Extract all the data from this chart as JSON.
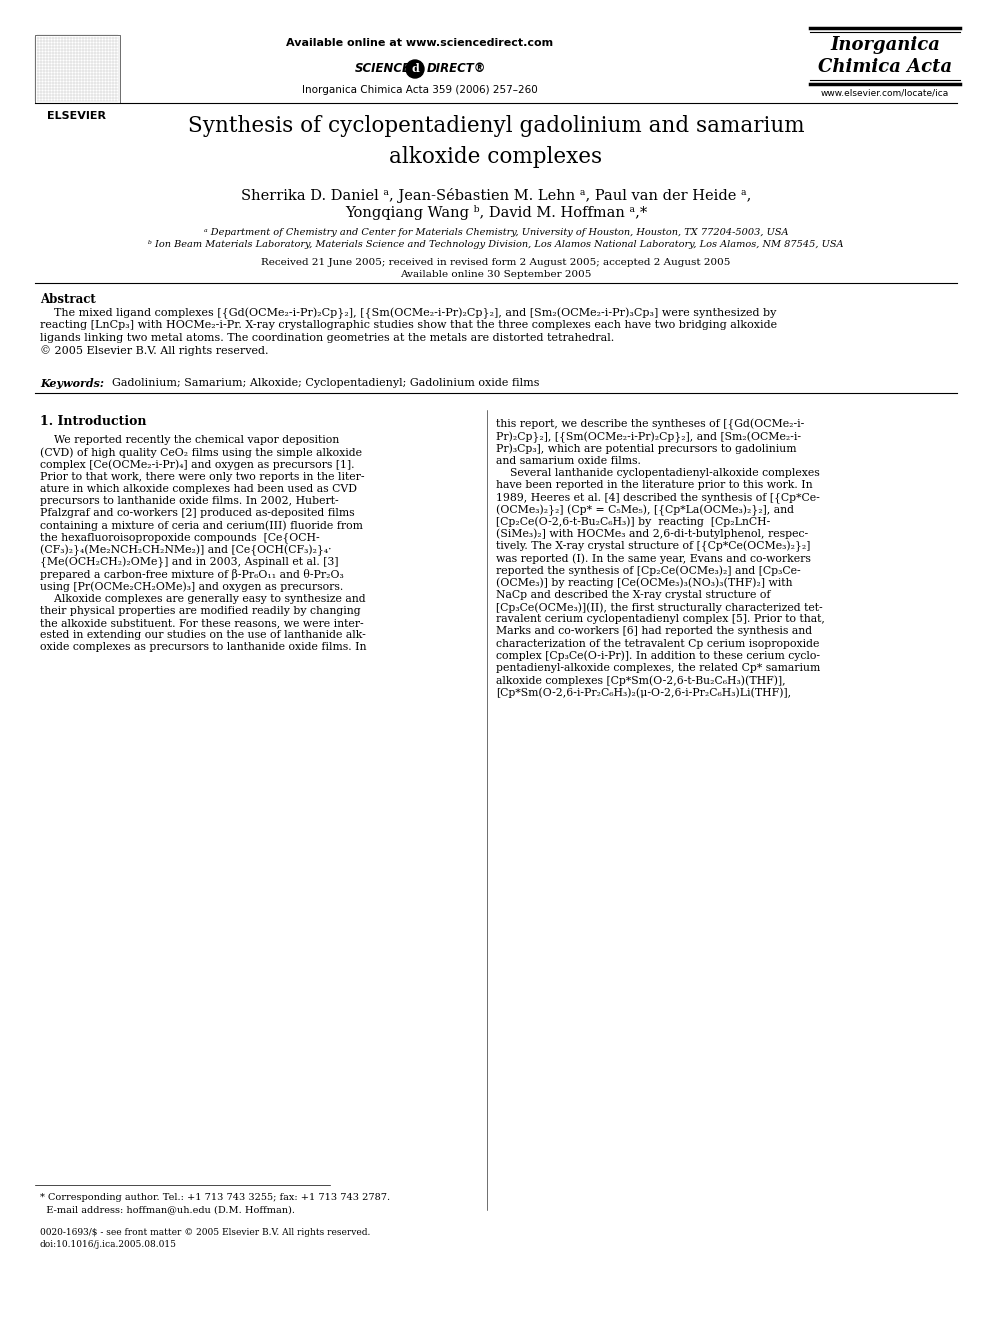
{
  "bg_color": "#ffffff",
  "title": "Synthesis of cyclopentadienyl gadolinium and samarium\nalkoxide complexes",
  "authors_line1": "Sherrika D. Daniel ᵃ, Jean-Sébastien M. Lehn ᵃ, Paul van der Heide ᵃ,",
  "authors_line2": "Yongqiang Wang ᵇ, David M. Hoffman ᵃ,*",
  "affil_a": "ᵃ Department of Chemistry and Center for Materials Chemistry, University of Houston, Houston, TX 77204-5003, USA",
  "affil_b": "ᵇ Ion Beam Materials Laboratory, Materials Science and Technology Division, Los Alamos National Laboratory, Los Alamos, NM 87545, USA",
  "received": "Received 21 June 2005; received in revised form 2 August 2005; accepted 2 August 2005",
  "available_online": "Available online 30 September 2005",
  "header_online": "Available online at www.sciencedirect.com",
  "journal_line": "Inorganica Chimica Acta 359 (2006) 257–260",
  "journal_name1": "Inorganica",
  "journal_name2": "Chimica Acta",
  "website": "www.elsevier.com/locate/ica",
  "abstract_title": "Abstract",
  "abstract_body": [
    "    The mixed ligand complexes [{Gd(OCMe₂-i-Pr)₂Cp}₂], [{Sm(OCMe₂-i-Pr)₂Cp}₂], and [Sm₂(OCMe₂-i-Pr)₃Cp₃] were synthesized by",
    "reacting [LnCp₃] with HOCMe₂-i-Pr. X-ray crystallographic studies show that the three complexes each have two bridging alkoxide",
    "ligands linking two metal atoms. The coordination geometries at the metals are distorted tetrahedral.",
    "© 2005 Elsevier B.V. All rights reserved."
  ],
  "keywords_bold": "Keywords:",
  "keywords_rest": "  Gadolinium; Samarium; Alkoxide; Cyclopentadienyl; Gadolinium oxide films",
  "sec1_title": "1. Introduction",
  "col1_lines": [
    "    We reported recently the chemical vapor deposition",
    "(CVD) of high quality CeO₂ films using the simple alkoxide",
    "complex [Ce(OCMe₂-i-Pr)₄] and oxygen as precursors [1].",
    "Prior to that work, there were only two reports in the liter-",
    "ature in which alkoxide complexes had been used as CVD",
    "precursors to lanthanide oxide films. In 2002, Hubert-",
    "Pfalzgraf and co-workers [2] produced as-deposited films",
    "containing a mixture of ceria and cerium(III) fluoride from",
    "the hexafluoroisopropoxide compounds  [Ce{OCH-",
    "(CF₃)₂}₄(Me₂NCH₂CH₂NMe₂)] and [Ce{OCH(CF₃)₂}₄·",
    "{Me(OCH₂CH₂)₂OMe}] and in 2003, Aspinall et al. [3]",
    "prepared a carbon-free mixture of β-Pr₆O₁₁ and θ-Pr₂O₃",
    "using [Pr(OCMe₂CH₂OMe)₃] and oxygen as precursors.",
    "    Alkoxide complexes are generally easy to synthesize and",
    "their physical properties are modified readily by changing",
    "the alkoxide substituent. For these reasons, we were inter-",
    "ested in extending our studies on the use of lanthanide alk-",
    "oxide complexes as precursors to lanthanide oxide films. In"
  ],
  "col2_lines": [
    "this report, we describe the syntheses of [{Gd(OCMe₂-i-",
    "Pr)₂Cp}₂], [{Sm(OCMe₂-i-Pr)₂Cp}₂], and [Sm₂(OCMe₂-i-",
    "Pr)₃Cp₃], which are potential precursors to gadolinium",
    "and samarium oxide films.",
    "    Several lanthanide cyclopentadienyl-alkoxide complexes",
    "have been reported in the literature prior to this work. In",
    "1989, Heeres et al. [4] described the synthesis of [{Cp*Ce-",
    "(OCMe₃)₂}₂] (Cp* = C₅Me₅), [{Cp*La(OCMe₃)₂}₂], and",
    "[Cp₂Ce(O-2,6-t-Bu₂C₆H₃)] by  reacting  [Cp₂LnCH-",
    "(SiMe₃)₂] with HOCMe₃ and 2,6-di-t-butylphenol, respec-",
    "tively. The X-ray crystal structure of [{Cp*Ce(OCMe₃)₂}₂]",
    "was reported (I). In the same year, Evans and co-workers",
    "reported the synthesis of [Cp₂Ce(OCMe₃)₂] and [Cp₃Ce-",
    "(OCMe₃)] by reacting [Ce(OCMe₃)₃(NO₃)₃(THF)₂] with",
    "NaCp and described the X-ray crystal structure of",
    "[Cp₃Ce(OCMe₃)](II), the first structurally characterized tet-",
    "ravalent cerium cyclopentadienyl complex [5]. Prior to that,",
    "Marks and co-workers [6] had reported the synthesis and",
    "characterization of the tetravalent Cp cerium isopropoxide",
    "complex [Cp₃Ce(O-i-Pr)]. In addition to these cerium cyclo-",
    "pentadienyl-alkoxide complexes, the related Cp* samarium",
    "alkoxide complexes [Cp*Sm(O-2,6-t-Bu₂C₆H₃)(THF)],",
    "[Cp*Sm(O-2,6-i-Pr₂C₆H₃)₂(μ-O-2,6-i-Pr₂C₆H₃)Li(THF)],"
  ],
  "footnote1": "* Corresponding author. Tel.: +1 713 743 3255; fax: +1 713 743 2787.",
  "footnote2": "  E-mail address: hoffman@uh.edu (D.M. Hoffman).",
  "copyright1": "0020-1693/$ - see front matter © 2005 Elsevier B.V. All rights reserved.",
  "copyright2": "doi:10.1016/j.ica.2005.08.015"
}
